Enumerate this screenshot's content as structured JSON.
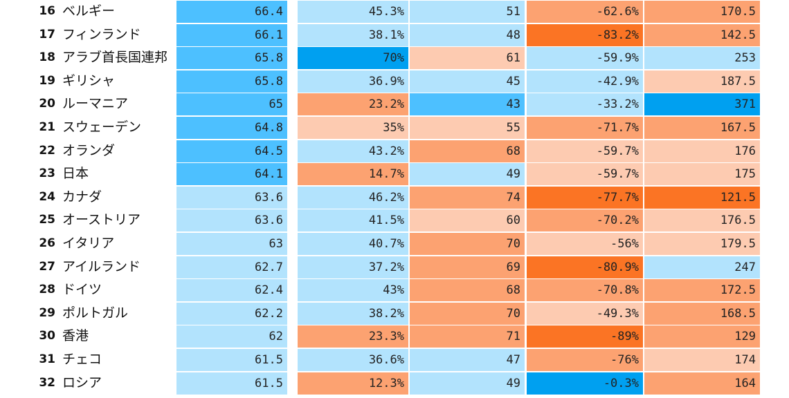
{
  "chart_data": {
    "type": "table",
    "colors": {
      "blue_dark": "#00a0f0",
      "blue_mid": "#4dc0ff",
      "blue_light": "#b2e3fd",
      "orange_light": "#fdcbb1",
      "orange_mid": "#fca271",
      "orange_dark": "#fb7424"
    },
    "rows": [
      {
        "rank": "16",
        "name": "ベルギー",
        "values": [
          "66.4",
          "45.3%",
          "51",
          "-62.6%",
          "170.5"
        ],
        "colors": [
          "blue_mid",
          "blue_light",
          "blue_light",
          "orange_mid",
          "orange_mid"
        ]
      },
      {
        "rank": "17",
        "name": "フィンランド",
        "values": [
          "66.1",
          "38.1%",
          "48",
          "-83.2%",
          "142.5"
        ],
        "colors": [
          "blue_mid",
          "blue_light",
          "blue_light",
          "orange_dark",
          "orange_mid"
        ]
      },
      {
        "rank": "18",
        "name": "アラブ首長国連邦",
        "values": [
          "65.8",
          "70%",
          "61",
          "-59.9%",
          "253"
        ],
        "colors": [
          "blue_mid",
          "blue_dark",
          "orange_light",
          "blue_light",
          "blue_light"
        ]
      },
      {
        "rank": "19",
        "name": "ギリシャ",
        "values": [
          "65.8",
          "36.9%",
          "45",
          "-42.9%",
          "187.5"
        ],
        "colors": [
          "blue_mid",
          "blue_light",
          "blue_light",
          "blue_light",
          "orange_light"
        ]
      },
      {
        "rank": "20",
        "name": "ルーマニア",
        "values": [
          "65",
          "23.2%",
          "43",
          "-33.2%",
          "371"
        ],
        "colors": [
          "blue_mid",
          "orange_mid",
          "blue_mid",
          "blue_light",
          "blue_dark"
        ]
      },
      {
        "rank": "21",
        "name": "スウェーデン",
        "values": [
          "64.8",
          "35%",
          "55",
          "-71.7%",
          "167.5"
        ],
        "colors": [
          "blue_mid",
          "orange_light",
          "orange_light",
          "orange_mid",
          "orange_mid"
        ]
      },
      {
        "rank": "22",
        "name": "オランダ",
        "values": [
          "64.5",
          "43.2%",
          "68",
          "-59.7%",
          "176"
        ],
        "colors": [
          "blue_mid",
          "blue_light",
          "orange_mid",
          "orange_light",
          "orange_light"
        ]
      },
      {
        "rank": "23",
        "name": "日本",
        "values": [
          "64.1",
          "14.7%",
          "49",
          "-59.7%",
          "175"
        ],
        "colors": [
          "blue_mid",
          "orange_mid",
          "blue_light",
          "orange_light",
          "orange_light"
        ]
      },
      {
        "rank": "24",
        "name": "カナダ",
        "values": [
          "63.6",
          "46.2%",
          "74",
          "-77.7%",
          "121.5"
        ],
        "colors": [
          "blue_light",
          "blue_light",
          "orange_mid",
          "orange_dark",
          "orange_dark"
        ]
      },
      {
        "rank": "25",
        "name": "オーストリア",
        "values": [
          "63.6",
          "41.5%",
          "60",
          "-70.2%",
          "176.5"
        ],
        "colors": [
          "blue_light",
          "blue_light",
          "orange_light",
          "orange_mid",
          "orange_light"
        ]
      },
      {
        "rank": "26",
        "name": "イタリア",
        "values": [
          "63",
          "40.7%",
          "70",
          "-56%",
          "179.5"
        ],
        "colors": [
          "blue_light",
          "blue_light",
          "orange_mid",
          "orange_light",
          "orange_light"
        ]
      },
      {
        "rank": "27",
        "name": "アイルランド",
        "values": [
          "62.7",
          "37.2%",
          "69",
          "-80.9%",
          "247"
        ],
        "colors": [
          "blue_light",
          "blue_light",
          "orange_mid",
          "orange_dark",
          "blue_light"
        ]
      },
      {
        "rank": "28",
        "name": "ドイツ",
        "values": [
          "62.4",
          "43%",
          "68",
          "-70.8%",
          "172.5"
        ],
        "colors": [
          "blue_light",
          "blue_light",
          "orange_mid",
          "orange_mid",
          "orange_mid"
        ]
      },
      {
        "rank": "29",
        "name": "ポルトガル",
        "values": [
          "62.2",
          "38.2%",
          "70",
          "-49.3%",
          "168.5"
        ],
        "colors": [
          "blue_light",
          "blue_light",
          "orange_mid",
          "orange_light",
          "orange_mid"
        ]
      },
      {
        "rank": "30",
        "name": "香港",
        "values": [
          "62",
          "23.3%",
          "71",
          "-89%",
          "129"
        ],
        "colors": [
          "blue_light",
          "orange_mid",
          "orange_mid",
          "orange_dark",
          "orange_mid"
        ]
      },
      {
        "rank": "31",
        "name": "チェコ",
        "values": [
          "61.5",
          "36.6%",
          "47",
          "-76%",
          "174"
        ],
        "colors": [
          "blue_light",
          "blue_light",
          "blue_light",
          "orange_mid",
          "orange_light"
        ]
      },
      {
        "rank": "32",
        "name": "ロシア",
        "values": [
          "61.5",
          "12.3%",
          "49",
          "-0.3%",
          "164"
        ],
        "colors": [
          "blue_light",
          "orange_mid",
          "blue_light",
          "blue_dark",
          "orange_mid"
        ]
      }
    ]
  }
}
